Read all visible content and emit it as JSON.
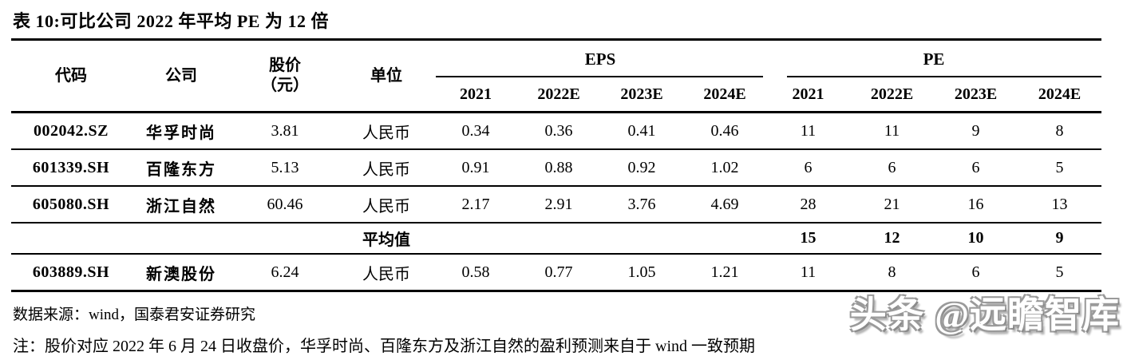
{
  "title": "表 10:可比公司 2022 年平均 PE 为 12 倍",
  "table": {
    "headers": {
      "code": "代码",
      "company": "公司",
      "price_line1": "股价",
      "price_line2": "（元）",
      "unit": "单位"
    },
    "groups": [
      {
        "label": "EPS",
        "years": [
          "2021",
          "2022E",
          "2023E",
          "2024E"
        ]
      },
      {
        "label": "PE",
        "years": [
          "2021",
          "2022E",
          "2023E",
          "2024E"
        ]
      }
    ],
    "rows": [
      {
        "code": "002042.SZ",
        "company": "华孚时尚",
        "price": "3.81",
        "unit": "人民币",
        "eps": [
          "0.34",
          "0.36",
          "0.41",
          "0.46"
        ],
        "pe": [
          "11",
          "11",
          "9",
          "8"
        ]
      },
      {
        "code": "601339.SH",
        "company": "百隆东方",
        "price": "5.13",
        "unit": "人民币",
        "eps": [
          "0.91",
          "0.88",
          "0.92",
          "1.02"
        ],
        "pe": [
          "6",
          "6",
          "6",
          "5"
        ]
      },
      {
        "code": "605080.SH",
        "company": "浙江自然",
        "price": "60.46",
        "unit": "人民币",
        "eps": [
          "2.17",
          "2.91",
          "3.76",
          "4.69"
        ],
        "pe": [
          "28",
          "21",
          "16",
          "13"
        ]
      },
      {
        "code": "",
        "company": "",
        "price": "",
        "unit": "平均值",
        "eps": [
          "",
          "",
          "",
          ""
        ],
        "pe": [
          "15",
          "12",
          "10",
          "9"
        ],
        "is_average": true
      },
      {
        "code": "603889.SH",
        "company": "新澳股份",
        "price": "6.24",
        "unit": "人民币",
        "eps": [
          "0.58",
          "0.77",
          "1.05",
          "1.21"
        ],
        "pe": [
          "11",
          "8",
          "6",
          "5"
        ]
      }
    ]
  },
  "footer": {
    "source": "数据来源：wind，国泰君安证券研究",
    "note": "注：股价对应 2022 年 6 月 24 日收盘价，华孚时尚、百隆东方及浙江自然的盈利预测来自于 wind 一致预期"
  },
  "watermark": "头条 @远瞻智库",
  "colors": {
    "text": "#000000",
    "background": "#ffffff",
    "rule": "#000000",
    "watermark_outline": "#9a9a9a"
  }
}
